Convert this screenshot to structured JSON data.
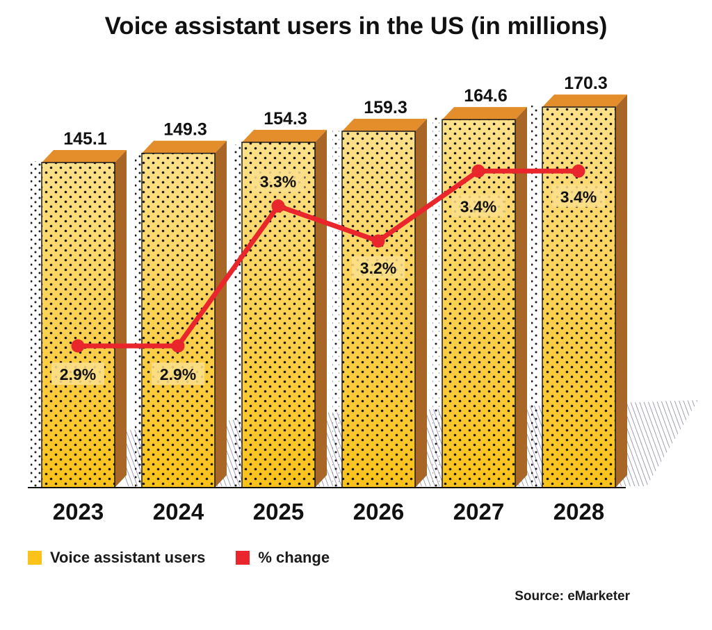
{
  "title": "Voice assistant users in the US (in millions)",
  "legend": {
    "bars_label": "Voice assistant users",
    "line_label": "% change"
  },
  "source": "Source: eMarketer",
  "colors": {
    "bar_top": "#fde08a",
    "bar_bottom": "#fbc21a",
    "bar_cap": "#e38e2b",
    "bar_side": "#a86627",
    "line": "#e8262b",
    "label_highlight": "#fcdf8c"
  },
  "chart_data": {
    "type": "bar",
    "title": "Voice assistant users in the US (in millions)",
    "categories": [
      "2023",
      "2024",
      "2025",
      "2026",
      "2027",
      "2028"
    ],
    "series": [
      {
        "name": "Voice assistant users",
        "type": "bar",
        "values": [
          145.1,
          149.3,
          154.3,
          159.3,
          164.6,
          170.3
        ],
        "labels": [
          "145.1",
          "149.3",
          "154.3",
          "159.3",
          "164.6",
          "170.3"
        ]
      },
      {
        "name": "% change",
        "type": "line",
        "values": [
          2.9,
          2.9,
          3.3,
          3.2,
          3.4,
          3.4
        ],
        "labels": [
          "2.9%",
          "2.9%",
          "3.3%",
          "3.2%",
          "3.4%",
          "3.4%"
        ]
      }
    ],
    "xlabel": "",
    "ylabel": "",
    "grid": false,
    "legend_position": "bottom-left"
  }
}
